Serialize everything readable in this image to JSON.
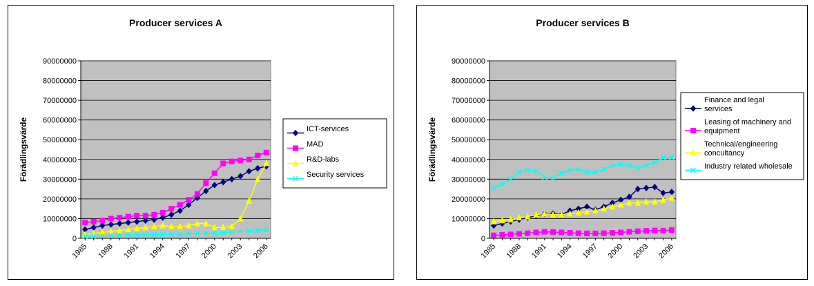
{
  "chart_data": [
    {
      "type": "line",
      "title": "Producer services A",
      "ylabel": "Förädlingsvärde",
      "xlabel": "",
      "ylim": [
        0,
        90000000
      ],
      "yticks": [
        "0",
        "10000000",
        "20000000",
        "30000000",
        "40000000",
        "50000000",
        "60000000",
        "70000000",
        "80000000",
        "90000000"
      ],
      "x": [
        1985,
        1986,
        1987,
        1988,
        1989,
        1990,
        1991,
        1992,
        1993,
        1994,
        1995,
        1996,
        1997,
        1998,
        1999,
        2000,
        2001,
        2002,
        2003,
        2004,
        2005,
        2006
      ],
      "xticklabels": [
        "1985",
        "1988",
        "1991",
        "1994",
        "1997",
        "2000",
        "2003",
        "2006"
      ],
      "grid": true,
      "plot_background": "#c0c0c0",
      "legend": "right",
      "series": [
        {
          "name": "ICT-services",
          "color": "#000080",
          "marker": "diamond",
          "values": [
            4500000,
            5500000,
            6500000,
            7000000,
            7500000,
            8000000,
            8500000,
            9000000,
            9500000,
            10500000,
            12000000,
            14000000,
            17000000,
            20500000,
            24000000,
            27000000,
            28500000,
            30000000,
            31500000,
            34000000,
            35500000,
            36500000
          ]
        },
        {
          "name": "MAD",
          "color": "#ff00ff",
          "marker": "square",
          "values": [
            8000000,
            8500000,
            9000000,
            10000000,
            10500000,
            11000000,
            11500000,
            11500000,
            12000000,
            13000000,
            15000000,
            17000000,
            19500000,
            22500000,
            28000000,
            33000000,
            38000000,
            39000000,
            39500000,
            40000000,
            42000000,
            43500000
          ]
        },
        {
          "name": "R&D-labs",
          "color": "#ffff00",
          "marker": "triangle",
          "values": [
            2000000,
            2500000,
            3000000,
            3500000,
            4000000,
            4500000,
            5000000,
            5500000,
            6000000,
            6500000,
            6000000,
            6000000,
            6500000,
            7500000,
            7500000,
            5500000,
            5500000,
            6000000,
            10000000,
            19000000,
            30000000,
            38000000
          ]
        },
        {
          "name": "Security services",
          "color": "#00ffff",
          "marker": "x",
          "values": [
            1000000,
            1200000,
            1400000,
            1500000,
            1600000,
            1700000,
            1800000,
            1900000,
            2000000,
            2000000,
            2100000,
            2200000,
            2300000,
            2400000,
            2500000,
            2700000,
            3000000,
            3200000,
            3500000,
            3800000,
            4000000,
            4300000
          ]
        }
      ]
    },
    {
      "type": "line",
      "title": "Producer services B",
      "ylabel": "Förädlingsvärde",
      "xlabel": "",
      "ylim": [
        0,
        90000000
      ],
      "yticks": [
        "0",
        "10000000",
        "20000000",
        "30000000",
        "40000000",
        "50000000",
        "60000000",
        "70000000",
        "80000000",
        "90000000"
      ],
      "x": [
        1985,
        1986,
        1987,
        1988,
        1989,
        1990,
        1991,
        1992,
        1993,
        1994,
        1995,
        1996,
        1997,
        1998,
        1999,
        2000,
        2001,
        2002,
        2003,
        2004,
        2005,
        2006
      ],
      "xticklabels": [
        "1985",
        "1988",
        "1991",
        "1994",
        "1997",
        "2000",
        "2003",
        "2006"
      ],
      "grid": true,
      "plot_background": "#c0c0c0",
      "legend": "right",
      "series": [
        {
          "name": "Finance and legal services",
          "color": "#000080",
          "marker": "diamond",
          "values": [
            6500000,
            7500000,
            8500000,
            9500000,
            10500000,
            11500000,
            12500000,
            12500000,
            12000000,
            14000000,
            15000000,
            16000000,
            14500000,
            16000000,
            18000000,
            19500000,
            21000000,
            25000000,
            25500000,
            26000000,
            23000000,
            23500000
          ]
        },
        {
          "name": "Leasing of machinery and equipment",
          "color": "#ff00ff",
          "marker": "square",
          "values": [
            1500000,
            1800000,
            2000000,
            2300000,
            2600000,
            3000000,
            3300000,
            3200000,
            3000000,
            2800000,
            2600000,
            2500000,
            2500000,
            2600000,
            2800000,
            3000000,
            3300000,
            3600000,
            3800000,
            4000000,
            3900000,
            4200000
          ]
        },
        {
          "name": "Technical/engineering concultancy",
          "color": "#ffff00",
          "marker": "triangle",
          "values": [
            8500000,
            9000000,
            9500000,
            10500000,
            11000000,
            12000000,
            12500000,
            12000000,
            12000000,
            12500000,
            13000000,
            13500000,
            14000000,
            15000000,
            16000000,
            17000000,
            18000000,
            18000000,
            18500000,
            18500000,
            19500000,
            20500000
          ]
        },
        {
          "name": "Industry related wholesale",
          "color": "#00ffff",
          "marker": "x",
          "values": [
            25500000,
            27500000,
            30000000,
            33500000,
            34500000,
            34000000,
            31000000,
            30500000,
            33000000,
            34500000,
            35000000,
            33500000,
            33500000,
            35000000,
            37000000,
            37500000,
            37000000,
            35500000,
            37000000,
            38500000,
            41000000,
            41000000
          ]
        }
      ]
    }
  ]
}
